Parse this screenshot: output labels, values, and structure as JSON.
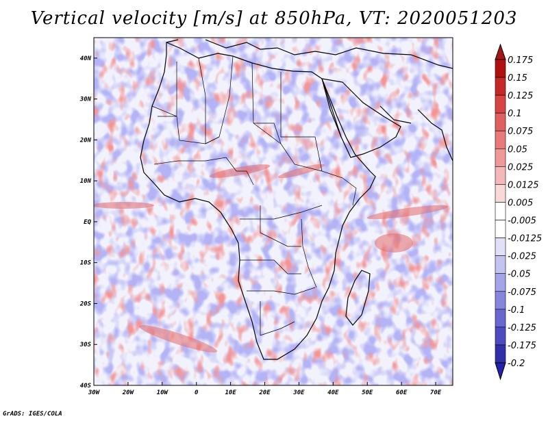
{
  "title": "Vertical velocity [m/s] at 850hPa, VT: 2020051203",
  "credit": "GrADS: IGES/COLA",
  "map": {
    "variable": "Vertical velocity",
    "units": "m/s",
    "level": "850hPa",
    "valid_time": "2020051203",
    "lon_range": [
      -30,
      75
    ],
    "lat_range": [
      -40,
      45
    ],
    "lat_labels": [
      "40N",
      "30N",
      "20N",
      "10N",
      "EQ",
      "10S",
      "20S",
      "30S",
      "40S"
    ],
    "lon_labels": [
      "30W",
      "20W",
      "10W",
      "0",
      "10E",
      "20E",
      "30E",
      "40E",
      "50E",
      "60E",
      "70E"
    ]
  },
  "colorbar": {
    "labels": [
      "0.175",
      "0.15",
      "0.125",
      "0.1",
      "0.075",
      "0.05",
      "0.025",
      "0.0125",
      "0.005",
      "-0.005",
      "-0.0125",
      "-0.025",
      "-0.05",
      "-0.075",
      "-0.1",
      "-0.125",
      "-0.175",
      "-0.2"
    ],
    "colors": [
      "#b01010",
      "#c62828",
      "#d84444",
      "#e06060",
      "#e87a7a",
      "#ef9999",
      "#f4b8b8",
      "#f9d8d8",
      "#ffffff",
      "#ffffff",
      "#e0e0f8",
      "#c4c4f0",
      "#a4a4e8",
      "#8686de",
      "#6868d0",
      "#4c4cc0",
      "#3030a8",
      "#1a1a90"
    ],
    "top_arrow_color": "#a01818",
    "bottom_arrow_color": "#2222aa"
  }
}
